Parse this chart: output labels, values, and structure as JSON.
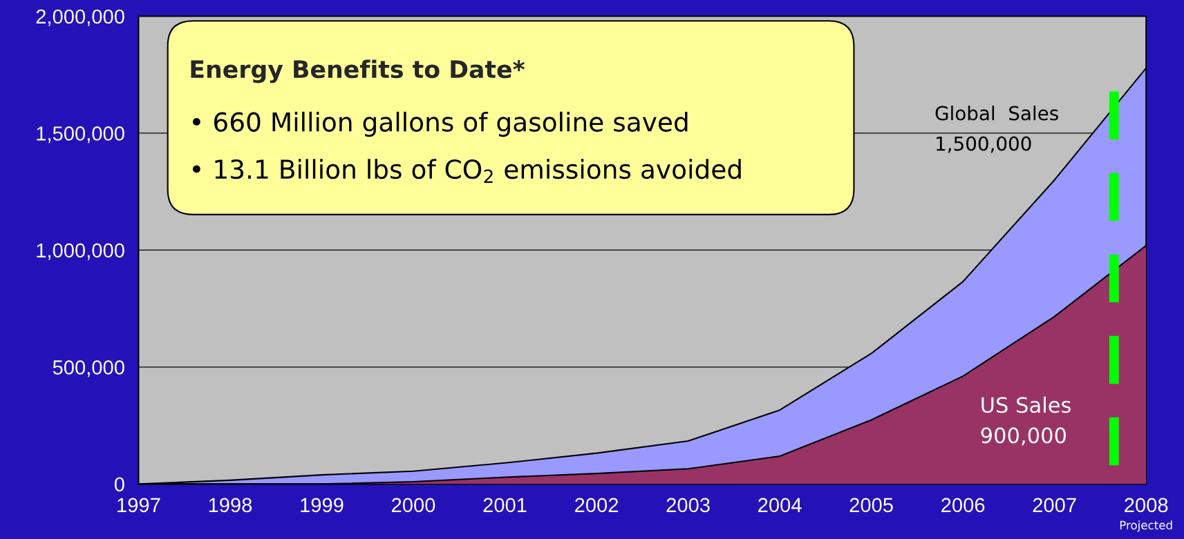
{
  "chart_data": {
    "type": "area",
    "title": "Energy Benefits to Date*",
    "x": [
      1997,
      1998,
      1999,
      2000,
      2001,
      2002,
      2003,
      2004,
      2005,
      2006,
      2007,
      2008
    ],
    "series": [
      {
        "name": "Global  Sales",
        "color": "#9999ff",
        "values": [
          0,
          16000,
          39000,
          55000,
          90000,
          132000,
          184000,
          316000,
          558000,
          865000,
          1300000,
          1778000
        ]
      },
      {
        "name": "US Sales",
        "color": "#993366",
        "values": [
          0,
          0,
          0,
          10000,
          29000,
          45000,
          65000,
          119000,
          274000,
          461000,
          716000,
          1019000
        ]
      }
    ],
    "annotations": [
      "• 660 Million gallons of gasoline saved",
      "• 13.1 Billion lbs of CO$_{2}$ emissions avoided",
      "1,500,000",
      "900,000",
      "Projected"
    ],
    "xlim": [
      1997,
      2008
    ],
    "xticks": [
      1997,
      1998,
      1999,
      2000,
      2001,
      2002,
      2003,
      2004,
      2005,
      2006,
      2007,
      2008
    ],
    "ylim": [
      0,
      2000000
    ],
    "yticks": [
      {
        "value": 0,
        "label": "0"
      },
      {
        "value": 500000,
        "label": "500,000"
      },
      {
        "value": 1000000,
        "label": "1,000,000"
      },
      {
        "value": 1500000,
        "label": "1,500,000"
      },
      {
        "value": 2000000,
        "label": "2,000,000"
      }
    ],
    "ref_lines": [
      {
        "axis": "x",
        "value": 2007.65,
        "color": "#00ff00",
        "line_style": "dashed"
      }
    ],
    "grid": "y",
    "legend": false
  }
}
